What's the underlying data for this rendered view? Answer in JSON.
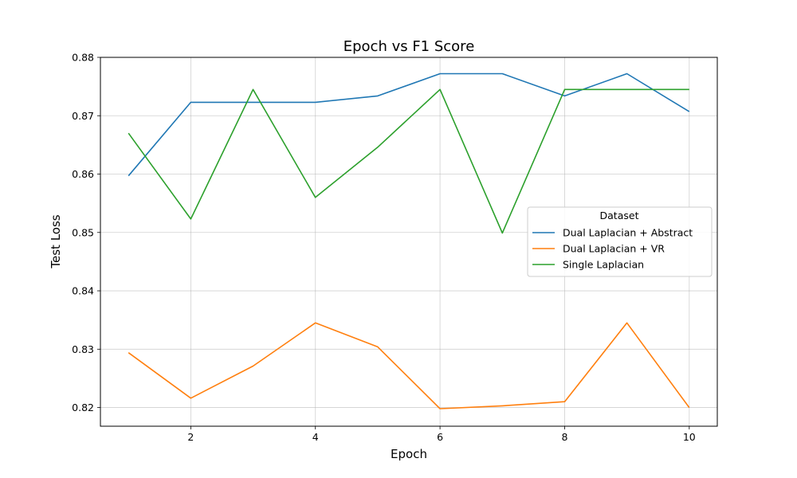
{
  "chart_data": {
    "type": "line",
    "title": "Epoch vs F1 Score",
    "xlabel": "Epoch",
    "ylabel": "Test Loss",
    "xlim": [
      0.55,
      10.45
    ],
    "ylim": [
      0.8168,
      0.88
    ],
    "xticks": [
      2,
      4,
      6,
      8,
      10
    ],
    "yticks": [
      0.82,
      0.83,
      0.84,
      0.85,
      0.86,
      0.87,
      0.88
    ],
    "ytick_labels": [
      "0.82",
      "0.83",
      "0.84",
      "0.85",
      "0.86",
      "0.87",
      "0.88"
    ],
    "grid": true,
    "legend": {
      "title": "Dataset",
      "placement": "center-right"
    },
    "x": [
      1,
      2,
      3,
      4,
      5,
      6,
      7,
      8,
      9,
      10
    ],
    "series": [
      {
        "name": "Dual Laplacian + Abstract",
        "color": "#1f77b4",
        "values": [
          0.8597,
          0.8723,
          0.8723,
          0.8723,
          0.8734,
          0.8772,
          0.8772,
          0.8734,
          0.8772,
          0.8707
        ]
      },
      {
        "name": "Dual Laplacian + VR",
        "color": "#ff7f0e",
        "values": [
          0.8294,
          0.8216,
          0.8271,
          0.8345,
          0.8304,
          0.8198,
          0.8203,
          0.821,
          0.8345,
          0.82
        ]
      },
      {
        "name": "Single Laplacian",
        "color": "#2ca02c",
        "values": [
          0.867,
          0.8523,
          0.8745,
          0.856,
          0.8646,
          0.8745,
          0.8499,
          0.8745,
          0.8745,
          0.8745
        ]
      }
    ]
  }
}
